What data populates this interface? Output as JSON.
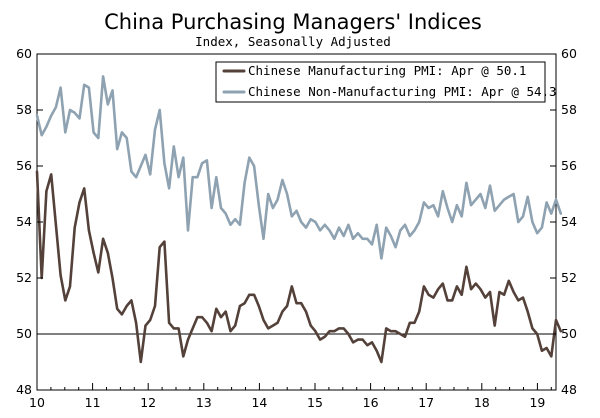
{
  "chart_data": {
    "type": "line",
    "title": "China Purchasing Managers' Indices",
    "subtitle": "Index, Seasonally Adjusted",
    "xlabel": "",
    "ylabel": "",
    "ylim": [
      48,
      60
    ],
    "y_ticks": [
      "48",
      "50",
      "52",
      "54",
      "56",
      "58",
      "60"
    ],
    "x_ticks": [
      "10",
      "11",
      "12",
      "13",
      "14",
      "15",
      "16",
      "17",
      "18",
      "19"
    ],
    "x_start_year": 2010,
    "x_end_year": 2019.42,
    "reference_line": 50,
    "grid": false,
    "legend_position": "top-right",
    "series": [
      {
        "name": "Chinese Manufacturing PMI: Apr @ 50.1",
        "color": "#53413a",
        "values": [
          55.8,
          52.0,
          55.1,
          55.7,
          53.9,
          52.1,
          51.2,
          51.7,
          53.8,
          54.7,
          55.2,
          53.7,
          52.9,
          52.2,
          53.4,
          52.9,
          52.0,
          50.9,
          50.7,
          51.0,
          51.2,
          50.4,
          49.0,
          50.3,
          50.5,
          51.0,
          53.1,
          53.3,
          50.4,
          50.2,
          50.2,
          49.2,
          49.8,
          50.2,
          50.6,
          50.6,
          50.4,
          50.1,
          50.9,
          50.6,
          50.8,
          50.1,
          50.3,
          51.0,
          51.1,
          51.4,
          51.4,
          51.0,
          50.5,
          50.2,
          50.3,
          50.4,
          50.8,
          51.0,
          51.7,
          51.1,
          51.1,
          50.8,
          50.3,
          50.1,
          49.8,
          49.9,
          50.1,
          50.1,
          50.2,
          50.2,
          50.0,
          49.7,
          49.8,
          49.8,
          49.6,
          49.7,
          49.4,
          49.0,
          50.2,
          50.1,
          50.1,
          50.0,
          49.9,
          50.4,
          50.4,
          50.8,
          51.7,
          51.4,
          51.3,
          51.6,
          51.8,
          51.2,
          51.2,
          51.7,
          51.4,
          52.4,
          51.6,
          51.8,
          51.6,
          51.3,
          51.5,
          50.3,
          51.5,
          51.4,
          51.9,
          51.5,
          51.2,
          51.3,
          50.8,
          50.2,
          50.0,
          49.4,
          49.5,
          49.2,
          50.5,
          50.1
        ]
      },
      {
        "name": "Chinese Non-Manufacturing PMI: Apr @ 54.3",
        "color": "#8ea2b1",
        "values": [
          57.8,
          57.1,
          57.4,
          57.8,
          58.1,
          58.8,
          57.2,
          58.0,
          57.9,
          57.7,
          58.9,
          58.8,
          57.2,
          57.0,
          59.2,
          58.2,
          58.7,
          56.6,
          57.2,
          57.0,
          55.8,
          55.6,
          56.0,
          56.4,
          55.7,
          57.3,
          58.0,
          56.1,
          55.2,
          56.7,
          55.6,
          56.3,
          53.7,
          55.6,
          55.6,
          56.1,
          56.2,
          54.5,
          55.6,
          54.5,
          54.3,
          53.9,
          54.1,
          53.9,
          55.4,
          56.3,
          56.0,
          54.6,
          53.4,
          55.0,
          54.5,
          54.8,
          55.5,
          55.0,
          54.2,
          54.4,
          54.0,
          53.8,
          54.1,
          54.0,
          53.7,
          53.9,
          53.7,
          53.4,
          53.8,
          53.5,
          53.9,
          53.4,
          53.6,
          53.4,
          53.4,
          53.2,
          53.9,
          52.7,
          53.8,
          53.5,
          53.1,
          53.7,
          53.9,
          53.5,
          53.7,
          54.0,
          54.7,
          54.5,
          54.6,
          54.2,
          55.1,
          54.5,
          54.0,
          54.6,
          54.2,
          55.4,
          54.6,
          54.8,
          55.0,
          54.5,
          55.3,
          54.4,
          54.6,
          54.8,
          54.9,
          55.0,
          54.0,
          54.2,
          54.9,
          54.0,
          53.6,
          53.8,
          54.7,
          54.3,
          54.8,
          54.3
        ]
      }
    ]
  }
}
